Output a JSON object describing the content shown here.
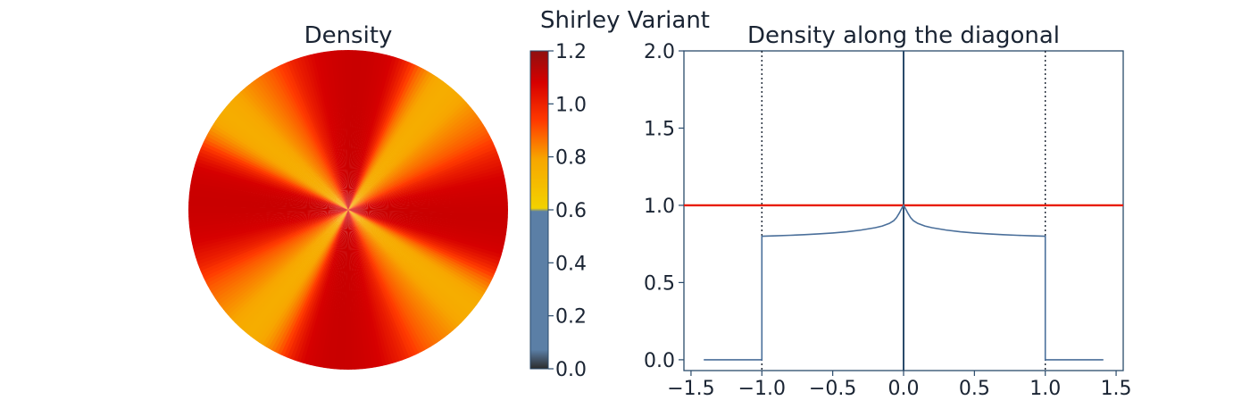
{
  "suptitle": "Shirley Variant",
  "chart_data": [
    {
      "type": "heatmap",
      "title": "Density",
      "shape": "disc",
      "lobes": 8,
      "description_values": {
        "center": 1.0,
        "peak": 1.1,
        "trough": 0.8
      },
      "colorbar": {
        "ticks": [
          "0.0",
          "0.2",
          "0.4",
          "0.6",
          "0.8",
          "1.0",
          "1.2"
        ],
        "range": [
          0.0,
          1.2
        ],
        "colors": {
          "c0": "#2b2b2b",
          "c1": "#5b7fa6",
          "c2": "#f2d200",
          "c3": "#f7a600",
          "c4": "#ff3a00",
          "c5": "#d60000",
          "c6": "#8f1010"
        }
      }
    },
    {
      "type": "line",
      "title": "Density along the diagonal",
      "xlim": [
        -1.55,
        1.55
      ],
      "ylim": [
        -0.07,
        2.0
      ],
      "xticks": [
        "−1.5",
        "−1.0",
        "−0.5",
        "0.0",
        "0.5",
        "1.0",
        "1.5"
      ],
      "xtick_values": [
        -1.5,
        -1.0,
        -0.5,
        0.0,
        0.5,
        1.0,
        1.5
      ],
      "yticks": [
        "0.0",
        "0.5",
        "1.0",
        "1.5",
        "2.0"
      ],
      "ytick_values": [
        0.0,
        0.5,
        1.0,
        1.5,
        2.0
      ],
      "vlines_dotted": [
        -1.0,
        1.0
      ],
      "vline_solid": 0.0,
      "hline": 1.0,
      "colors": {
        "density": "#4a6f9a",
        "reference": "#e81c00",
        "vline": "#2a4a6a"
      },
      "series": [
        {
          "x": [
            -1.41,
            -1.0,
            -1.0,
            -0.9,
            -0.8,
            -0.7,
            -0.6,
            -0.5,
            -0.4,
            -0.3,
            -0.2,
            -0.15,
            -0.1,
            -0.07,
            -0.05,
            -0.03,
            -0.01,
            0.0,
            0.01,
            0.03,
            0.05,
            0.07,
            0.1,
            0.15,
            0.2,
            0.3,
            0.4,
            0.5,
            0.6,
            0.7,
            0.8,
            0.9,
            1.0,
            1.0,
            1.41
          ],
          "y": [
            0.0,
            0.0,
            0.8,
            0.803,
            0.806,
            0.81,
            0.815,
            0.821,
            0.829,
            0.84,
            0.855,
            0.866,
            0.883,
            0.9,
            0.92,
            0.95,
            0.985,
            1.0,
            0.985,
            0.95,
            0.92,
            0.9,
            0.883,
            0.866,
            0.855,
            0.84,
            0.829,
            0.821,
            0.815,
            0.81,
            0.806,
            0.803,
            0.8,
            0.0,
            0.0
          ]
        }
      ]
    }
  ]
}
